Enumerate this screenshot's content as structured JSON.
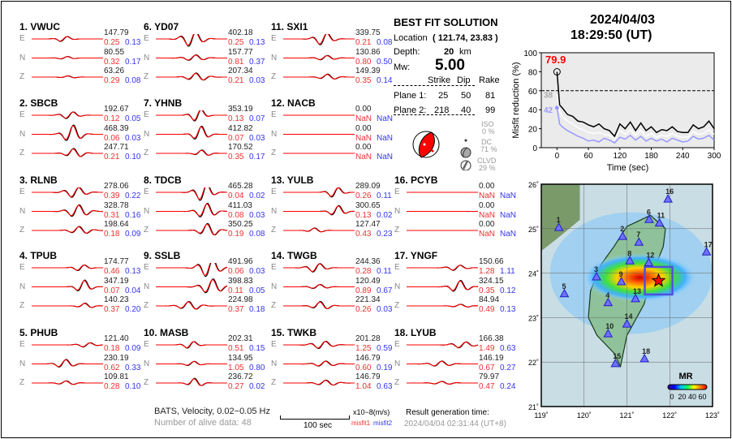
{
  "header": {
    "date": "2024/04/03",
    "time": "18:29:50  (UT)"
  },
  "stations": [
    {
      "num": "1.",
      "name": "VWUC",
      "col": 0,
      "row": 0,
      "traces": [
        {
          "comp": "E",
          "amp": "147.79",
          "m1": "0.25",
          "m2": "0.13"
        },
        {
          "comp": "N",
          "amp": "80.55",
          "m1": "0.32",
          "m2": "0.17"
        },
        {
          "comp": "Z",
          "amp": "63.26",
          "m1": "0.29",
          "m2": "0.08"
        }
      ]
    },
    {
      "num": "2.",
      "name": "SBCB",
      "col": 0,
      "row": 1,
      "traces": [
        {
          "comp": "E",
          "amp": "192.67",
          "m1": "0.12",
          "m2": "0.05"
        },
        {
          "comp": "N",
          "amp": "468.39",
          "m1": "0.06",
          "m2": "0.03"
        },
        {
          "comp": "Z",
          "amp": "247.71",
          "m1": "0.21",
          "m2": "0.10"
        }
      ]
    },
    {
      "num": "3.",
      "name": "RLNB",
      "col": 0,
      "row": 2,
      "traces": [
        {
          "comp": "E",
          "amp": "278.06",
          "m1": "0.39",
          "m2": "0.22"
        },
        {
          "comp": "N",
          "amp": "328.78",
          "m1": "0.31",
          "m2": "0.16"
        },
        {
          "comp": "Z",
          "amp": "198.64",
          "m1": "0.18",
          "m2": "0.09"
        }
      ]
    },
    {
      "num": "4.",
      "name": "TPUB",
      "col": 0,
      "row": 3,
      "traces": [
        {
          "comp": "E",
          "amp": "174.77",
          "m1": "0.46",
          "m2": "0.13"
        },
        {
          "comp": "N",
          "amp": "347.19",
          "m1": "0.07",
          "m2": "0.04"
        },
        {
          "comp": "Z",
          "amp": "140.23",
          "m1": "0.37",
          "m2": "0.20"
        }
      ]
    },
    {
      "num": "5.",
      "name": "PHUB",
      "col": 0,
      "row": 4,
      "traces": [
        {
          "comp": "E",
          "amp": "121.40",
          "m1": "0.18",
          "m2": "0.09"
        },
        {
          "comp": "N",
          "amp": "230.19",
          "m1": "0.62",
          "m2": "0.33"
        },
        {
          "comp": "Z",
          "amp": "109.81",
          "m1": "0.28",
          "m2": "0.10"
        }
      ]
    },
    {
      "num": "6.",
      "name": "YD07",
      "col": 1,
      "row": 0,
      "traces": [
        {
          "comp": "E",
          "amp": "402.18",
          "m1": "0.25",
          "m2": "0.13"
        },
        {
          "comp": "N",
          "amp": "157.77",
          "m1": "0.81",
          "m2": "0.37"
        },
        {
          "comp": "Z",
          "amp": "207.34",
          "m1": "0.21",
          "m2": "0.03"
        }
      ]
    },
    {
      "num": "7.",
      "name": "YHNB",
      "col": 1,
      "row": 1,
      "traces": [
        {
          "comp": "E",
          "amp": "353.19",
          "m1": "0.13",
          "m2": "0.07"
        },
        {
          "comp": "N",
          "amp": "412.82",
          "m1": "0.07",
          "m2": "0.03"
        },
        {
          "comp": "Z",
          "amp": "170.52",
          "m1": "0.35",
          "m2": "0.17"
        }
      ]
    },
    {
      "num": "8.",
      "name": "TDCB",
      "col": 1,
      "row": 2,
      "traces": [
        {
          "comp": "E",
          "amp": "465.28",
          "m1": "0.04",
          "m2": "0.02"
        },
        {
          "comp": "N",
          "amp": "411.03",
          "m1": "0.08",
          "m2": "0.03"
        },
        {
          "comp": "Z",
          "amp": "350.25",
          "m1": "0.19",
          "m2": "0.08"
        }
      ]
    },
    {
      "num": "9.",
      "name": "SSLB",
      "col": 1,
      "row": 3,
      "traces": [
        {
          "comp": "E",
          "amp": "491.96",
          "m1": "0.06",
          "m2": "0.03"
        },
        {
          "comp": "N",
          "amp": "398.83",
          "m1": "0.11",
          "m2": "0.05"
        },
        {
          "comp": "Z",
          "amp": "224.98",
          "m1": "0.37",
          "m2": "0.18"
        }
      ]
    },
    {
      "num": "10.",
      "name": "MASB",
      "col": 1,
      "row": 4,
      "traces": [
        {
          "comp": "E",
          "amp": "202.31",
          "m1": "0.51",
          "m2": "0.15"
        },
        {
          "comp": "N",
          "amp": "134.95",
          "m1": "1.05",
          "m2": "0.80"
        },
        {
          "comp": "Z",
          "amp": "236.72",
          "m1": "0.27",
          "m2": "0.02"
        }
      ]
    },
    {
      "num": "11.",
      "name": "SXI1",
      "col": 2,
      "row": 0,
      "traces": [
        {
          "comp": "E",
          "amp": "339.75",
          "m1": "0.21",
          "m2": "0.08"
        },
        {
          "comp": "N",
          "amp": "130.86",
          "m1": "0.80",
          "m2": "0.50"
        },
        {
          "comp": "Z",
          "amp": "149.39",
          "m1": "0.35",
          "m2": "0.14"
        }
      ]
    },
    {
      "num": "12.",
      "name": "NACB",
      "col": 2,
      "row": 1,
      "traces": [
        {
          "comp": "E",
          "amp": "0.00",
          "m1": "NaN",
          "m2": "NaN"
        },
        {
          "comp": "N",
          "amp": "0.00",
          "m1": "NaN",
          "m2": "NaN"
        },
        {
          "comp": "Z",
          "amp": "0.00",
          "m1": "NaN",
          "m2": "NaN"
        }
      ]
    },
    {
      "num": "13.",
      "name": "YULB",
      "col": 2,
      "row": 2,
      "traces": [
        {
          "comp": "E",
          "amp": "289.09",
          "m1": "0.26",
          "m2": "0.11"
        },
        {
          "comp": "N",
          "amp": "300.65",
          "m1": "0.13",
          "m2": "0.02"
        },
        {
          "comp": "Z",
          "amp": "127.47",
          "m1": "0.43",
          "m2": "0.23"
        }
      ]
    },
    {
      "num": "14.",
      "name": "TWGB",
      "col": 2,
      "row": 3,
      "traces": [
        {
          "comp": "E",
          "amp": "244.36",
          "m1": "0.28",
          "m2": "0.11"
        },
        {
          "comp": "N",
          "amp": "120.49",
          "m1": "0.89",
          "m2": "0.67"
        },
        {
          "comp": "Z",
          "amp": "221.34",
          "m1": "0.26",
          "m2": "0.03"
        }
      ]
    },
    {
      "num": "15.",
      "name": "TWKB",
      "col": 2,
      "row": 4,
      "traces": [
        {
          "comp": "E",
          "amp": "201.28",
          "m1": "1.25",
          "m2": "0.59"
        },
        {
          "comp": "N",
          "amp": "146.79",
          "m1": "0.60",
          "m2": "0.19"
        },
        {
          "comp": "Z",
          "amp": "146.79",
          "m1": "1.04",
          "m2": "0.63"
        }
      ]
    },
    {
      "num": "16.",
      "name": "PCYB",
      "col": 3,
      "row": 2,
      "traces": [
        {
          "comp": "E",
          "amp": "0.00",
          "m1": "NaN",
          "m2": "NaN"
        },
        {
          "comp": "N",
          "amp": "0.00",
          "m1": "NaN",
          "m2": "NaN"
        },
        {
          "comp": "Z",
          "amp": "0.00",
          "m1": "NaN",
          "m2": "NaN"
        }
      ]
    },
    {
      "num": "17.",
      "name": "YNGF",
      "col": 3,
      "row": 3,
      "traces": [
        {
          "comp": "E",
          "amp": "150.66",
          "m1": "1.28",
          "m2": "1.11"
        },
        {
          "comp": "N",
          "amp": "324.15",
          "m1": "0.35",
          "m2": "0.12"
        },
        {
          "comp": "Z",
          "amp": "84.94",
          "m1": "0.49",
          "m2": "0.13"
        }
      ]
    },
    {
      "num": "18.",
      "name": "LYUB",
      "col": 3,
      "row": 4,
      "traces": [
        {
          "comp": "E",
          "amp": "166.38",
          "m1": "1.49",
          "m2": "0.63"
        },
        {
          "comp": "N",
          "amp": "146.19",
          "m1": "0.67",
          "m2": "0.27"
        },
        {
          "comp": "Z",
          "amp": "79.97",
          "m1": "0.47",
          "m2": "0.24"
        }
      ]
    }
  ],
  "solution": {
    "title": "BEST FIT SOLUTION",
    "location_label": "Location",
    "location": "( 121.74,  23.83 )",
    "depth_label": "Depth:",
    "depth": "20",
    "depth_unit": "km",
    "mw_label": "Mw:",
    "mw": "5.00",
    "headers": [
      "Strike",
      "Dip",
      "Rake"
    ],
    "planes": [
      {
        "label": "Plane 1:",
        "strike": "25",
        "dip": "50",
        "rake": "81"
      },
      {
        "label": "Plane 2:",
        "strike": "218",
        "dip": "40",
        "rake": "99"
      }
    ],
    "components": [
      {
        "label": "ISO",
        "pct": "0 %"
      },
      {
        "label": "DC",
        "pct": "71 %"
      },
      {
        "label": "CLVD",
        "pct": "29 %"
      }
    ]
  },
  "footer": {
    "source": "BATS, Velocity, 0.02−0.05 Hz",
    "alive": "Number of alive data: 48",
    "scale_label": "100 sec",
    "units": "x10−8(m/s)",
    "misfit1": "misfit1",
    "misfit2": "misfit2",
    "gen_label": "Result generation time:",
    "gen_time": "2024/04/04 02:31:44 (UT+8)"
  },
  "colors": {
    "observed": "#000000",
    "synthetic": "#ff0000",
    "misfit1": "#f03030",
    "misfit2": "#3535f0",
    "best_curve": "#000000",
    "secondary_curve": "#9999ff"
  },
  "chart_data": {
    "type": "line",
    "xlabel": "Time (sec)",
    "ylabel": "Misfit reduction (%)",
    "xlim": [
      -30,
      300
    ],
    "ylim": [
      0,
      100
    ],
    "xticks": [
      "0",
      "60",
      "120",
      "180",
      "240",
      "300"
    ],
    "yticks": [
      "0",
      "20",
      "40",
      "60",
      "80",
      "100"
    ],
    "threshold": 60,
    "best_label": "79.9",
    "label_a": "38",
    "label_b": "42",
    "x": [
      0,
      5,
      10,
      20,
      30,
      40,
      50,
      60,
      70,
      80,
      90,
      100,
      110,
      120,
      130,
      140,
      150,
      160,
      170,
      180,
      190,
      200,
      210,
      220,
      230,
      240,
      250,
      260,
      270,
      280,
      290,
      300
    ],
    "series": [
      {
        "color": "#000000",
        "values": [
          79.9,
          45,
          42,
          35,
          33,
          28,
          27,
          24,
          22,
          25,
          20,
          18,
          12,
          25,
          20,
          27,
          18,
          26,
          18,
          22,
          16,
          19,
          18,
          22,
          17,
          16,
          16,
          24,
          20,
          22,
          28,
          20
        ]
      },
      {
        "color": "#ffffff",
        "values": [
          56,
          38,
          33,
          28,
          25,
          21,
          19,
          16,
          15,
          16,
          14,
          13,
          9,
          18,
          14,
          19,
          13,
          18,
          12,
          15,
          11,
          13,
          12,
          15,
          12,
          11,
          11,
          17,
          14,
          15,
          19,
          14
        ]
      },
      {
        "color": "#9999ff",
        "values": [
          42,
          25,
          22,
          18,
          15,
          12,
          10,
          7,
          8,
          6,
          10,
          8,
          5,
          11,
          9,
          13,
          8,
          12,
          7,
          10,
          7,
          9,
          6,
          10,
          8,
          6,
          7,
          12,
          9,
          10,
          13,
          8
        ]
      }
    ]
  },
  "map": {
    "legend_title": "MR",
    "legend_ticks": [
      "0",
      "20",
      "40",
      "60"
    ],
    "lon_ticks": [
      "119˚",
      "120˚",
      "121˚",
      "122˚",
      "123˚"
    ],
    "lat_ticks": [
      "21˚",
      "22˚",
      "23˚",
      "24˚",
      "25˚",
      "26˚"
    ],
    "epicenter": {
      "lon": 121.74,
      "lat": 23.83
    },
    "stations": [
      {
        "id": "1",
        "lon": 119.41,
        "lat": 25.03
      },
      {
        "id": "2",
        "lon": 120.9,
        "lat": 24.83
      },
      {
        "id": "3",
        "lon": 120.29,
        "lat": 23.92
      },
      {
        "id": "4",
        "lon": 120.56,
        "lat": 23.34
      },
      {
        "id": "5",
        "lon": 119.54,
        "lat": 23.54
      },
      {
        "id": "6",
        "lon": 121.52,
        "lat": 25.21
      },
      {
        "id": "7",
        "lon": 121.28,
        "lat": 24.7
      },
      {
        "id": "8",
        "lon": 121.07,
        "lat": 24.28
      },
      {
        "id": "9",
        "lon": 120.87,
        "lat": 23.81
      },
      {
        "id": "10",
        "lon": 120.56,
        "lat": 22.64
      },
      {
        "id": "11",
        "lon": 121.76,
        "lat": 25.13
      },
      {
        "id": "12",
        "lon": 121.51,
        "lat": 24.24
      },
      {
        "id": "13",
        "lon": 121.2,
        "lat": 23.43
      },
      {
        "id": "14",
        "lon": 121.0,
        "lat": 22.86
      },
      {
        "id": "15",
        "lon": 120.73,
        "lat": 21.97
      },
      {
        "id": "16",
        "lon": 121.96,
        "lat": 25.67
      },
      {
        "id": "17",
        "lon": 122.86,
        "lat": 24.48
      },
      {
        "id": "18",
        "lon": 121.41,
        "lat": 22.08
      }
    ]
  }
}
